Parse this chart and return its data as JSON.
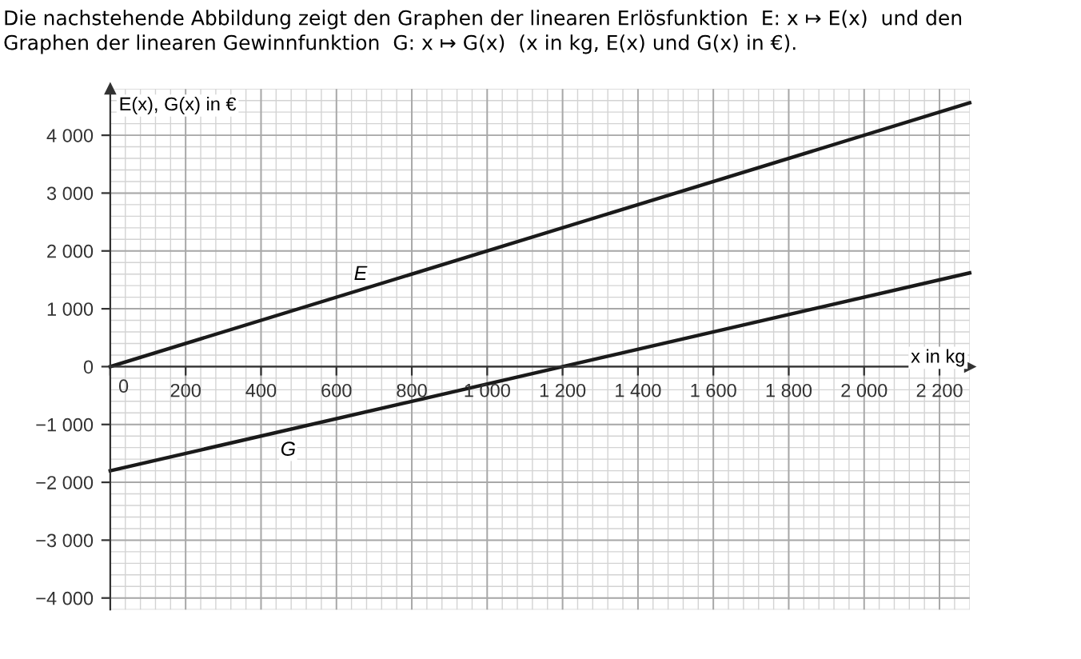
{
  "chart_data": {
    "type": "line",
    "title": "Die nachstehende Abbildung zeigt den Graphen der linearen Erlösfunktion  E: x ↦ E(x)  und den\nGraphen der linearen Gewinnfunktion  G: x ↦ G(x)  (x in kg, E(x) und G(x) in €).",
    "xlabel": "x in kg",
    "ylabel": "E(x), G(x) in €",
    "x": [
      0,
      2280
    ],
    "series": [
      {
        "color": "#1a1a1a",
        "values": [
          0,
          4560
        ]
      },
      {
        "color": "#1a1a1a",
        "values": [
          -1800,
          1620
        ]
      }
    ],
    "annotations": [
      {
        "text": "E",
        "x": 664,
        "y": 1590
      },
      {
        "text": "G",
        "x": 472,
        "y": -1450
      }
    ],
    "xlim": [
      0,
      2280
    ],
    "ylim": [
      -4200,
      4800
    ],
    "xticks": [
      0,
      200,
      400,
      600,
      800,
      {
        "value": 1000,
        "label": "1 000"
      },
      {
        "value": 1200,
        "label": "1 200"
      },
      {
        "value": 1400,
        "label": "1 400"
      },
      {
        "value": 1600,
        "label": "1 600"
      },
      {
        "value": 1800,
        "label": "1 800"
      },
      {
        "value": 2000,
        "label": "2 000"
      },
      {
        "value": 2200,
        "label": "2 200"
      }
    ],
    "yticks": [
      {
        "value": -4000,
        "label": "−4 000"
      },
      {
        "value": -3000,
        "label": "−3 000"
      },
      {
        "value": -2000,
        "label": "−2 000"
      },
      {
        "value": -1000,
        "label": "−1 000"
      },
      0,
      {
        "value": 1000,
        "label": "1 000"
      },
      {
        "value": 2000,
        "label": "2 000"
      },
      {
        "value": 3000,
        "label": "3 000"
      },
      {
        "value": 4000,
        "label": "4 000"
      }
    ],
    "grid": true,
    "marker": "none",
    "line_style": "solid"
  }
}
